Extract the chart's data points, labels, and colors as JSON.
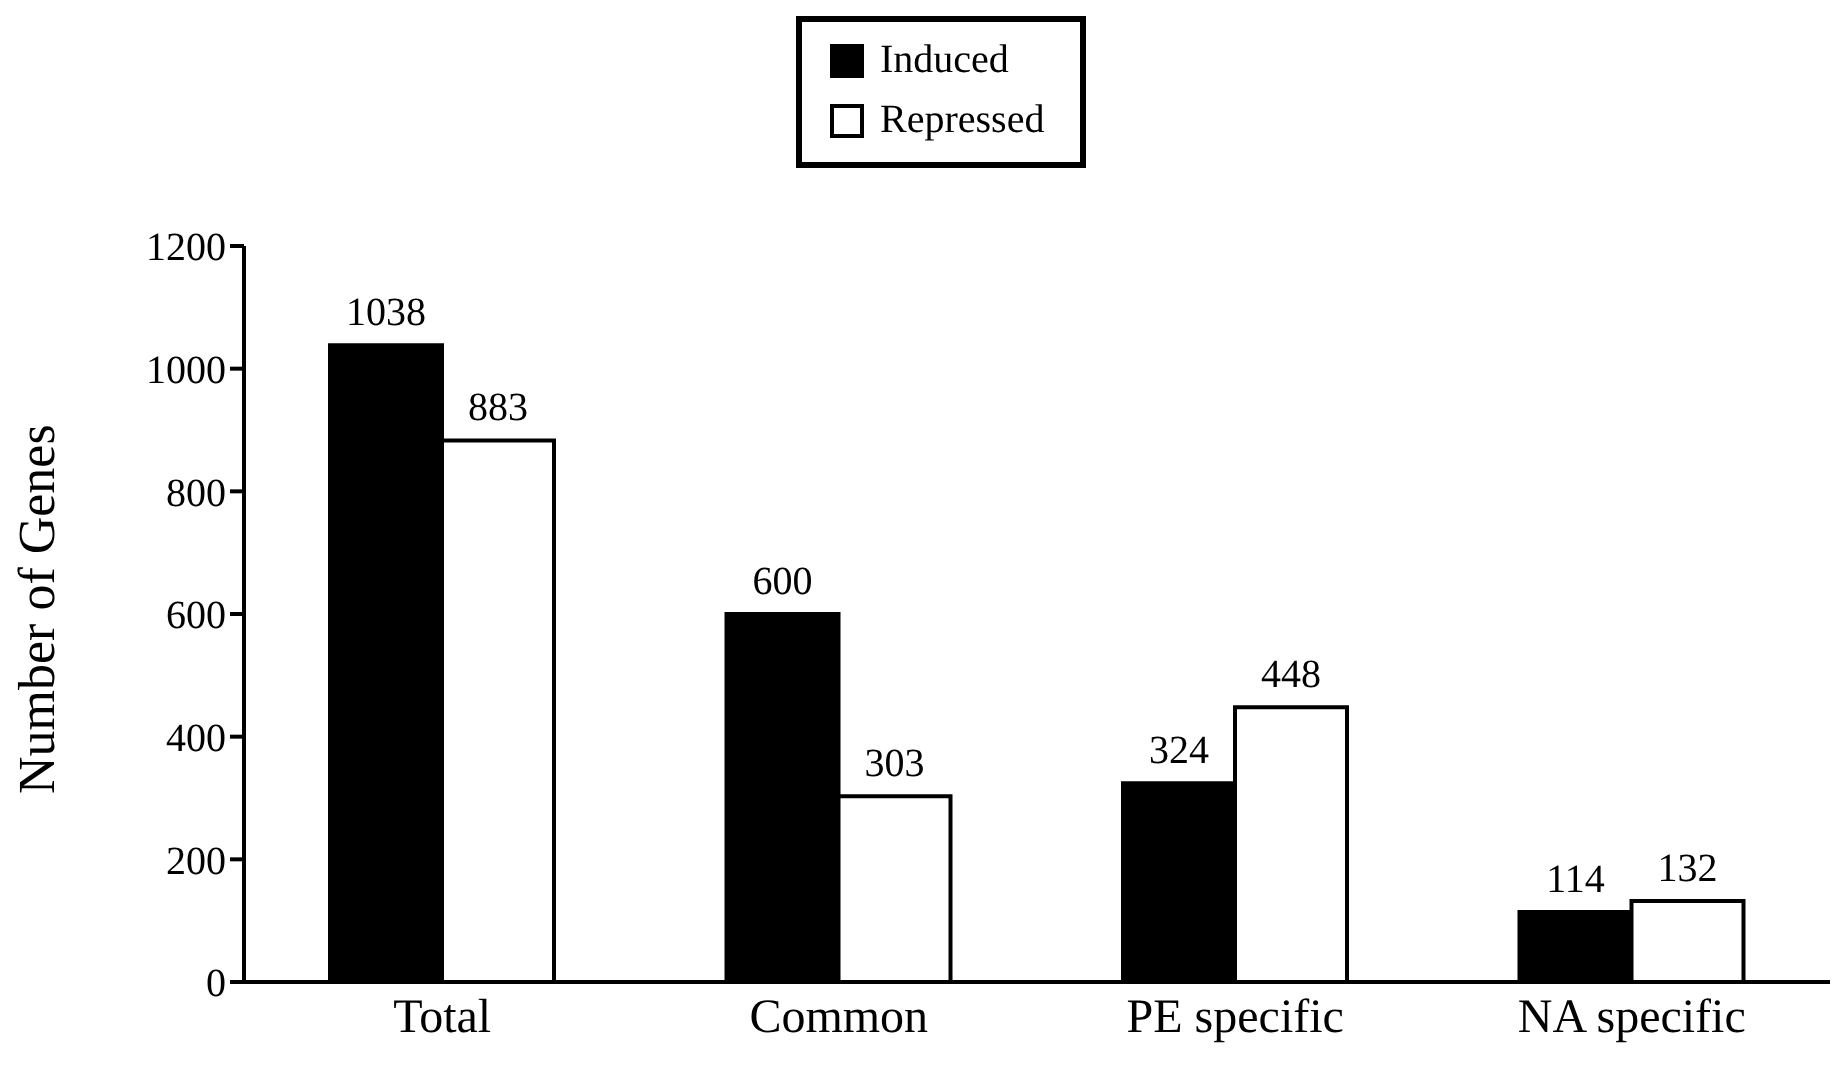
{
  "chart_data": {
    "type": "bar",
    "ylabel": "Number of Genes",
    "categories": [
      "Total",
      "Common",
      "PE specific",
      "NA specific"
    ],
    "series": [
      {
        "name": "Induced",
        "color": "#000000",
        "values": [
          1038,
          600,
          324,
          114
        ]
      },
      {
        "name": "Repressed",
        "color": "#ffffff",
        "values": [
          883,
          303,
          448,
          132
        ]
      }
    ],
    "ylim": [
      0,
      1200
    ],
    "yticks": [
      0,
      200,
      400,
      600,
      800,
      1000,
      1200
    ],
    "grid": false,
    "legend": "top",
    "data_labels": true
  }
}
